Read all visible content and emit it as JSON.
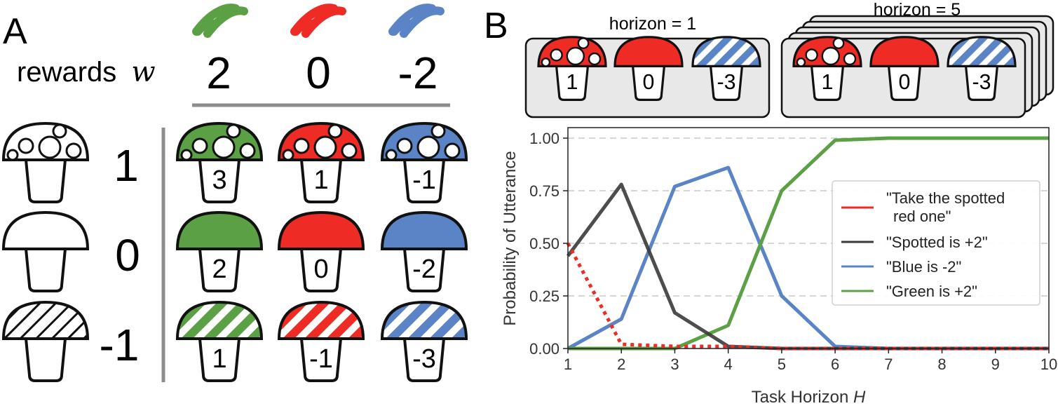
{
  "panel_a": {
    "letter": "A",
    "rewards_label": "rewards",
    "rewards_symbol": "w",
    "color_rewards": [
      "2",
      "0",
      "-2"
    ],
    "row_rewards": [
      "1",
      "0",
      "-1"
    ],
    "grid_values": [
      [
        "3",
        "1",
        "-1"
      ],
      [
        "2",
        "0",
        "-2"
      ],
      [
        "1",
        "-1",
        "-3"
      ]
    ]
  },
  "panel_b": {
    "letter": "B",
    "horizon_1_label": "horizon = 1",
    "horizon_5_label": "horizon = 5",
    "horizon_1_values": [
      "1",
      "0",
      "-3"
    ],
    "horizon_5_values": [
      "1",
      "0",
      "-3"
    ]
  },
  "colors": {
    "green": "#5ba044",
    "red": "#ee2b24",
    "blue": "#5b84c6",
    "black": "#3a3a3a",
    "white": "#ffffff",
    "outline": "#111111",
    "box_fill": "#e8e8e8",
    "divider": "#8c8c8c"
  },
  "chart_data": {
    "type": "line",
    "xlabel": "Task Horizon H",
    "ylabel": "Probability of Utterance",
    "xlim": [
      1,
      10
    ],
    "ylim": [
      0,
      1
    ],
    "x_ticks": [
      "1",
      "2",
      "3",
      "4",
      "5",
      "6",
      "7",
      "8",
      "9",
      "10"
    ],
    "y_ticks": [
      "0.00",
      "0.25",
      "0.50",
      "0.75",
      "1.00"
    ],
    "grid": "horizontal dashed",
    "legend_placement": "center-right",
    "x": [
      1,
      2,
      3,
      4,
      5,
      6,
      7,
      8,
      9,
      10
    ],
    "series": [
      {
        "name": "\"Take the spotted red one\"",
        "legend_lines": [
          "\"Take the spotted",
          "red one\""
        ],
        "color": "#ee2b24",
        "style": "dotted",
        "values": [
          0.5,
          0.02,
          0.01,
          0.01,
          0.0,
          0.0,
          0.0,
          0.0,
          0.0,
          0.0
        ]
      },
      {
        "name": "\"Spotted is +2\"",
        "legend_lines": [
          "\"Spotted is +2\""
        ],
        "color": "#3a3a3a",
        "style": "solid",
        "values": [
          0.44,
          0.78,
          0.17,
          0.01,
          0.0,
          0.0,
          0.0,
          0.0,
          0.0,
          0.0
        ]
      },
      {
        "name": "\"Blue is -2\"",
        "legend_lines": [
          "\"Blue is -2\""
        ],
        "color": "#5b84c6",
        "style": "solid",
        "values": [
          0.0,
          0.14,
          0.77,
          0.86,
          0.25,
          0.01,
          0.0,
          0.0,
          0.0,
          0.0
        ]
      },
      {
        "name": "\"Green is +2\"",
        "legend_lines": [
          "\"Green is +2\""
        ],
        "color": "#5ba044",
        "style": "solid",
        "values": [
          0.0,
          0.0,
          0.0,
          0.11,
          0.75,
          0.99,
          1.0,
          1.0,
          1.0,
          1.0
        ]
      }
    ]
  }
}
